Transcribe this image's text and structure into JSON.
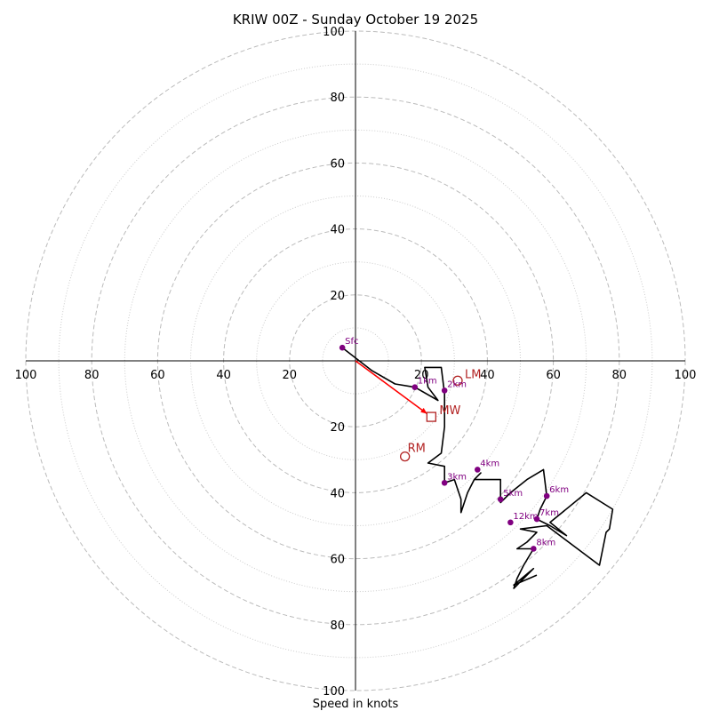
{
  "chart_data": {
    "type": "hodograph",
    "title": "KRIW 00Z - Sunday October 19 2025",
    "xlabel": "Speed in knots",
    "max_speed": 100,
    "major_ring_step": 20,
    "minor_ring_step": 10,
    "axis_ticks": [
      20,
      40,
      60,
      80,
      100
    ],
    "colors": {
      "trace": "#000000",
      "height_marker": "#800080",
      "motion": "#b22222",
      "mean_wind_arrow": "#ff0000",
      "ring": "#bbbbbb"
    },
    "hodograph_trace": [
      [
        -4,
        4
      ],
      [
        5,
        -3
      ],
      [
        12,
        -7
      ],
      [
        18,
        -8
      ],
      [
        25,
        -12
      ],
      [
        22,
        -8
      ],
      [
        21,
        -2
      ],
      [
        26,
        -2
      ],
      [
        27,
        -10
      ],
      [
        27,
        -20
      ],
      [
        26,
        -28
      ],
      [
        22,
        -31
      ],
      [
        27,
        -32
      ],
      [
        27,
        -37
      ],
      [
        30,
        -36
      ],
      [
        32,
        -42
      ],
      [
        32,
        -46
      ],
      [
        34,
        -40
      ],
      [
        36,
        -36
      ],
      [
        38,
        -34
      ],
      [
        36,
        -36
      ],
      [
        44,
        -36
      ],
      [
        44,
        -43
      ],
      [
        47,
        -40
      ],
      [
        52,
        -36
      ],
      [
        57,
        -33
      ],
      [
        58,
        -41
      ],
      [
        56,
        -45
      ],
      [
        55,
        -48
      ],
      [
        59,
        -50
      ],
      [
        64,
        -53
      ],
      [
        59,
        -49
      ],
      [
        70,
        -40
      ],
      [
        78,
        -45
      ],
      [
        77,
        -51
      ],
      [
        76,
        -52
      ],
      [
        74,
        -62
      ],
      [
        58,
        -50
      ],
      [
        50,
        -51
      ],
      [
        55,
        -52
      ],
      [
        52,
        -55
      ],
      [
        49,
        -57
      ],
      [
        54,
        -57
      ],
      [
        51,
        -62
      ],
      [
        49,
        -66
      ],
      [
        48,
        -69
      ],
      [
        54,
        -63
      ],
      [
        48,
        -68
      ],
      [
        55,
        -65
      ]
    ],
    "height_markers": [
      {
        "label": "Sfc",
        "u": -4,
        "v": 4
      },
      {
        "label": "1km",
        "u": 18,
        "v": -8
      },
      {
        "label": "2km",
        "u": 27,
        "v": -9
      },
      {
        "label": "3km",
        "u": 27,
        "v": -37
      },
      {
        "label": "4km",
        "u": 37,
        "v": -33
      },
      {
        "label": "5km",
        "u": 44,
        "v": -42
      },
      {
        "label": "6km",
        "u": 58,
        "v": -41
      },
      {
        "label": "7km",
        "u": 55,
        "v": -48
      },
      {
        "label": "8km",
        "u": 54,
        "v": -57
      },
      {
        "label": "12km",
        "u": 47,
        "v": -49
      }
    ],
    "storm_motion": {
      "LM": {
        "label": "LM",
        "u": 31,
        "v": -6
      },
      "RM": {
        "label": "RM",
        "u": 15,
        "v": -29
      },
      "MW": {
        "label": "MW",
        "u": 23,
        "v": -17
      }
    }
  }
}
